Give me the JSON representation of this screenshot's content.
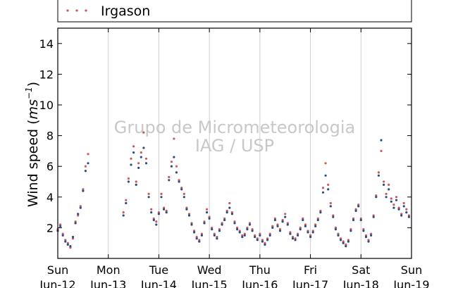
{
  "chart_data": {
    "type": "scatter",
    "title": "",
    "ylabel_text": "Wind speed (",
    "ylabel_unit": "ms",
    "ylabel_exp": "−1",
    "ylabel_close": ")",
    "ylim": [
      0,
      15
    ],
    "yticks": [
      2,
      4,
      6,
      8,
      10,
      12,
      14
    ],
    "x_day_range": [
      0,
      7
    ],
    "grid": "vertical",
    "legend_position": "top",
    "watermark": [
      "Grupo de Micrometeorologia",
      "IAG / USP"
    ],
    "xticks": [
      {
        "day": 0,
        "weekday": "Sun",
        "date": "Jun-12"
      },
      {
        "day": 1,
        "weekday": "Mon",
        "date": "Jun-13"
      },
      {
        "day": 2,
        "weekday": "Tue",
        "date": "Jun-14"
      },
      {
        "day": 3,
        "weekday": "Wed",
        "date": "Jun-15"
      },
      {
        "day": 4,
        "weekday": "Thu",
        "date": "Jun-16"
      },
      {
        "day": 5,
        "weekday": "Fri",
        "date": "Jun-17"
      },
      {
        "day": 6,
        "weekday": "Sat",
        "date": "Jun-18"
      },
      {
        "day": 7,
        "weekday": "Sun",
        "date": "Jun-19"
      }
    ],
    "series": [
      {
        "name": "Irgason",
        "color": "#cc5a5a",
        "points": [
          [
            0.0,
            1.9
          ],
          [
            0.05,
            2.2
          ],
          [
            0.1,
            1.6
          ],
          [
            0.15,
            1.2
          ],
          [
            0.2,
            1.0
          ],
          [
            0.25,
            0.7
          ],
          [
            0.3,
            1.3
          ],
          [
            0.35,
            2.4
          ],
          [
            0.4,
            2.8
          ],
          [
            0.45,
            3.4
          ],
          [
            0.5,
            4.5
          ],
          [
            0.55,
            6.0
          ],
          [
            0.6,
            6.8
          ],
          [
            1.3,
            3.0
          ],
          [
            1.35,
            3.8
          ],
          [
            1.4,
            5.2
          ],
          [
            1.45,
            6.5
          ],
          [
            1.5,
            7.3
          ],
          [
            1.55,
            5.0
          ],
          [
            1.6,
            6.2
          ],
          [
            1.65,
            6.9
          ],
          [
            1.7,
            8.2
          ],
          [
            1.75,
            6.5
          ],
          [
            1.8,
            4.2
          ],
          [
            1.85,
            3.2
          ],
          [
            1.9,
            2.6
          ],
          [
            1.95,
            2.4
          ],
          [
            2.0,
            3.0
          ],
          [
            2.05,
            4.2
          ],
          [
            2.1,
            3.3
          ],
          [
            2.15,
            3.1
          ],
          [
            2.2,
            5.3
          ],
          [
            2.25,
            6.3
          ],
          [
            2.3,
            7.8
          ],
          [
            2.35,
            6.0
          ],
          [
            2.4,
            5.1
          ],
          [
            2.45,
            4.6
          ],
          [
            2.5,
            4.2
          ],
          [
            2.55,
            3.3
          ],
          [
            2.6,
            2.9
          ],
          [
            2.65,
            2.3
          ],
          [
            2.7,
            1.8
          ],
          [
            2.75,
            1.4
          ],
          [
            2.8,
            1.2
          ],
          [
            2.85,
            1.6
          ],
          [
            2.9,
            2.4
          ],
          [
            2.95,
            3.2
          ],
          [
            3.0,
            2.7
          ],
          [
            3.05,
            2.0
          ],
          [
            3.1,
            1.6
          ],
          [
            3.15,
            1.4
          ],
          [
            3.2,
            1.9
          ],
          [
            3.25,
            2.3
          ],
          [
            3.3,
            2.6
          ],
          [
            3.35,
            3.1
          ],
          [
            3.4,
            3.6
          ],
          [
            3.45,
            3.0
          ],
          [
            3.5,
            2.4
          ],
          [
            3.55,
            2.0
          ],
          [
            3.6,
            1.8
          ],
          [
            3.65,
            1.5
          ],
          [
            3.7,
            1.6
          ],
          [
            3.75,
            2.0
          ],
          [
            3.8,
            2.3
          ],
          [
            3.85,
            1.9
          ],
          [
            3.9,
            1.5
          ],
          [
            3.95,
            1.3
          ],
          [
            4.0,
            1.6
          ],
          [
            4.05,
            1.2
          ],
          [
            4.1,
            1.0
          ],
          [
            4.15,
            1.3
          ],
          [
            4.2,
            1.6
          ],
          [
            4.25,
            2.1
          ],
          [
            4.3,
            2.6
          ],
          [
            4.35,
            2.2
          ],
          [
            4.4,
            1.9
          ],
          [
            4.45,
            2.5
          ],
          [
            4.5,
            2.9
          ],
          [
            4.55,
            2.3
          ],
          [
            4.6,
            1.7
          ],
          [
            4.65,
            1.4
          ],
          [
            4.7,
            1.3
          ],
          [
            4.75,
            1.6
          ],
          [
            4.8,
            2.0
          ],
          [
            4.85,
            2.6
          ],
          [
            4.9,
            2.2
          ],
          [
            4.95,
            1.8
          ],
          [
            5.0,
            1.5
          ],
          [
            5.05,
            1.8
          ],
          [
            5.1,
            2.2
          ],
          [
            5.15,
            2.6
          ],
          [
            5.2,
            3.1
          ],
          [
            5.25,
            4.6
          ],
          [
            5.3,
            6.2
          ],
          [
            5.35,
            4.8
          ],
          [
            5.4,
            3.6
          ],
          [
            5.45,
            2.8
          ],
          [
            5.5,
            2.0
          ],
          [
            5.55,
            1.6
          ],
          [
            5.6,
            1.3
          ],
          [
            5.65,
            1.1
          ],
          [
            5.7,
            0.9
          ],
          [
            5.75,
            1.2
          ],
          [
            5.8,
            1.9
          ],
          [
            5.85,
            2.6
          ],
          [
            5.9,
            3.2
          ],
          [
            5.95,
            3.5
          ],
          [
            6.0,
            2.6
          ],
          [
            6.05,
            1.9
          ],
          [
            6.1,
            1.5
          ],
          [
            6.15,
            1.2
          ],
          [
            6.2,
            1.6
          ],
          [
            6.25,
            2.8
          ],
          [
            6.3,
            4.1
          ],
          [
            6.35,
            5.6
          ],
          [
            6.4,
            7.0
          ],
          [
            6.45,
            5.0
          ],
          [
            6.5,
            4.2
          ],
          [
            6.55,
            4.8
          ],
          [
            6.6,
            3.9
          ],
          [
            6.65,
            3.5
          ],
          [
            6.7,
            4.0
          ],
          [
            6.75,
            3.3
          ],
          [
            6.8,
            2.9
          ],
          [
            6.85,
            3.6
          ],
          [
            6.9,
            3.2
          ],
          [
            6.95,
            2.8
          ]
        ]
      },
      {
        "name": "",
        "color": "#2a4d80",
        "points": [
          [
            0.0,
            1.8
          ],
          [
            0.05,
            2.1
          ],
          [
            0.1,
            1.5
          ],
          [
            0.15,
            1.1
          ],
          [
            0.2,
            0.9
          ],
          [
            0.25,
            0.8
          ],
          [
            0.3,
            1.4
          ],
          [
            0.35,
            2.3
          ],
          [
            0.4,
            2.9
          ],
          [
            0.45,
            3.3
          ],
          [
            0.5,
            4.4
          ],
          [
            0.55,
            5.7
          ],
          [
            0.6,
            6.2
          ],
          [
            1.3,
            2.8
          ],
          [
            1.35,
            3.6
          ],
          [
            1.4,
            5.0
          ],
          [
            1.45,
            6.1
          ],
          [
            1.5,
            6.9
          ],
          [
            1.55,
            4.8
          ],
          [
            1.6,
            5.9
          ],
          [
            1.65,
            6.6
          ],
          [
            1.7,
            7.2
          ],
          [
            1.75,
            6.2
          ],
          [
            1.8,
            4.0
          ],
          [
            1.85,
            3.0
          ],
          [
            1.9,
            2.5
          ],
          [
            1.95,
            2.2
          ],
          [
            2.0,
            2.9
          ],
          [
            2.05,
            4.0
          ],
          [
            2.1,
            3.2
          ],
          [
            2.15,
            3.0
          ],
          [
            2.2,
            5.1
          ],
          [
            2.25,
            6.0
          ],
          [
            2.3,
            6.6
          ],
          [
            2.35,
            5.6
          ],
          [
            2.4,
            5.0
          ],
          [
            2.45,
            4.5
          ],
          [
            2.5,
            4.0
          ],
          [
            2.55,
            3.2
          ],
          [
            2.6,
            2.8
          ],
          [
            2.65,
            2.2
          ],
          [
            2.7,
            1.7
          ],
          [
            2.75,
            1.3
          ],
          [
            2.8,
            1.1
          ],
          [
            2.85,
            1.5
          ],
          [
            2.9,
            2.3
          ],
          [
            2.95,
            3.0
          ],
          [
            3.0,
            2.6
          ],
          [
            3.05,
            1.9
          ],
          [
            3.1,
            1.5
          ],
          [
            3.15,
            1.3
          ],
          [
            3.2,
            1.8
          ],
          [
            3.25,
            2.2
          ],
          [
            3.3,
            2.5
          ],
          [
            3.35,
            3.0
          ],
          [
            3.4,
            3.3
          ],
          [
            3.45,
            2.9
          ],
          [
            3.5,
            2.3
          ],
          [
            3.55,
            1.9
          ],
          [
            3.6,
            1.7
          ],
          [
            3.65,
            1.4
          ],
          [
            3.7,
            1.5
          ],
          [
            3.75,
            1.9
          ],
          [
            3.8,
            2.2
          ],
          [
            3.85,
            1.8
          ],
          [
            3.9,
            1.4
          ],
          [
            3.95,
            1.2
          ],
          [
            4.0,
            1.5
          ],
          [
            4.05,
            1.1
          ],
          [
            4.1,
            0.9
          ],
          [
            4.15,
            1.2
          ],
          [
            4.2,
            1.5
          ],
          [
            4.25,
            2.0
          ],
          [
            4.3,
            2.5
          ],
          [
            4.35,
            2.1
          ],
          [
            4.4,
            1.8
          ],
          [
            4.45,
            2.4
          ],
          [
            4.5,
            2.7
          ],
          [
            4.55,
            2.2
          ],
          [
            4.6,
            1.6
          ],
          [
            4.65,
            1.3
          ],
          [
            4.7,
            1.2
          ],
          [
            4.75,
            1.5
          ],
          [
            4.8,
            1.9
          ],
          [
            4.85,
            2.5
          ],
          [
            4.9,
            2.1
          ],
          [
            4.95,
            1.7
          ],
          [
            5.0,
            1.4
          ],
          [
            5.05,
            1.7
          ],
          [
            5.1,
            2.1
          ],
          [
            5.15,
            2.5
          ],
          [
            5.2,
            3.0
          ],
          [
            5.25,
            4.3
          ],
          [
            5.3,
            5.4
          ],
          [
            5.35,
            4.5
          ],
          [
            5.4,
            3.4
          ],
          [
            5.45,
            2.7
          ],
          [
            5.5,
            1.9
          ],
          [
            5.55,
            1.5
          ],
          [
            5.6,
            1.2
          ],
          [
            5.65,
            1.0
          ],
          [
            5.7,
            0.8
          ],
          [
            5.75,
            1.1
          ],
          [
            5.8,
            1.8
          ],
          [
            5.85,
            2.5
          ],
          [
            5.9,
            3.1
          ],
          [
            5.95,
            3.4
          ],
          [
            6.0,
            2.5
          ],
          [
            6.05,
            1.8
          ],
          [
            6.1,
            1.4
          ],
          [
            6.15,
            1.1
          ],
          [
            6.2,
            1.5
          ],
          [
            6.25,
            2.7
          ],
          [
            6.3,
            4.0
          ],
          [
            6.35,
            5.4
          ],
          [
            6.4,
            7.7
          ],
          [
            6.45,
            4.8
          ],
          [
            6.5,
            4.0
          ],
          [
            6.55,
            4.5
          ],
          [
            6.6,
            3.7
          ],
          [
            6.65,
            3.3
          ],
          [
            6.7,
            3.8
          ],
          [
            6.75,
            3.2
          ],
          [
            6.8,
            2.8
          ],
          [
            6.85,
            3.4
          ],
          [
            6.9,
            3.0
          ],
          [
            6.95,
            2.7
          ]
        ]
      }
    ]
  }
}
